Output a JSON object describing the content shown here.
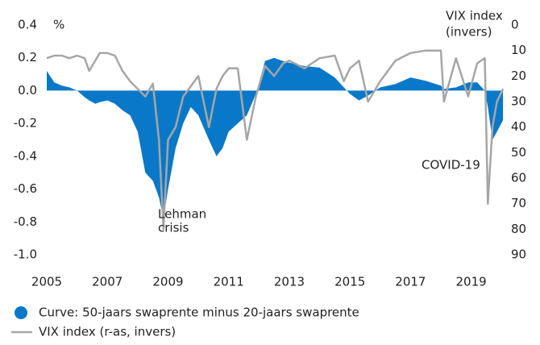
{
  "chart_data": {
    "type": "area-line",
    "ylabel": "%",
    "y2label": [
      "VIX index",
      "(invers)"
    ],
    "annotations": [
      [
        "Lehman",
        "crisis"
      ],
      [
        "COVID-19"
      ]
    ],
    "x": [
      2005,
      2005.25,
      2005.5,
      2005.75,
      2006,
      2006.25,
      2006.4,
      2006.6,
      2006.75,
      2007,
      2007.25,
      2007.5,
      2007.75,
      2008,
      2008.25,
      2008.5,
      2008.7,
      2008.85,
      2009,
      2009.25,
      2009.5,
      2009.75,
      2010,
      2010.35,
      2010.6,
      2010.8,
      2011,
      2011.3,
      2011.6,
      2011.9,
      2012.2,
      2012.5,
      2012.8,
      2013,
      2013.5,
      2014,
      2014.5,
      2014.8,
      2015,
      2015.3,
      2015.6,
      2016,
      2016.5,
      2017,
      2017.5,
      2018,
      2018.1,
      2018.5,
      2018.9,
      2019.2,
      2019.45,
      2019.55,
      2019.7,
      2019.85,
      2020.05
    ],
    "series": [
      {
        "name": "Curve: 50-jaars swaprente minus 20-jaars swaprente",
        "color": "#0a78c8",
        "kind": "area",
        "values": [
          0.12,
          0.05,
          0.03,
          0.02,
          0.0,
          -0.04,
          -0.06,
          -0.08,
          -0.07,
          -0.06,
          -0.08,
          -0.12,
          -0.15,
          -0.25,
          -0.5,
          -0.55,
          -0.65,
          -0.78,
          -0.6,
          -0.35,
          -0.2,
          -0.1,
          -0.15,
          -0.3,
          -0.4,
          -0.35,
          -0.25,
          -0.2,
          -0.15,
          -0.02,
          0.18,
          0.2,
          0.18,
          0.17,
          0.15,
          0.14,
          0.08,
          0.02,
          -0.02,
          -0.06,
          -0.03,
          0.02,
          0.04,
          0.08,
          0.06,
          0.03,
          0.01,
          0.02,
          0.05,
          0.05,
          0.0,
          -0.1,
          -0.3,
          -0.25,
          -0.18
        ]
      },
      {
        "name": "VIX index (r-as, invers)",
        "color": "#a6a6a6",
        "kind": "line",
        "axis": "y2",
        "values": [
          13,
          12,
          12,
          13,
          12,
          13,
          18,
          14,
          11,
          11,
          12,
          18,
          22,
          25,
          28,
          23,
          45,
          80,
          45,
          40,
          28,
          24,
          20,
          40,
          25,
          20,
          17,
          17,
          45,
          28,
          16,
          20,
          15,
          14,
          17,
          13,
          12,
          22,
          17,
          14,
          30,
          22,
          14,
          11,
          10,
          10,
          30,
          13,
          28,
          15,
          13,
          70,
          40,
          30,
          25
        ]
      }
    ],
    "xlim": [
      2005,
      2020.1
    ],
    "xticks": [
      2005,
      2007,
      2009,
      2011,
      2013,
      2015,
      2017,
      2019
    ],
    "ylim": [
      -1.0,
      0.4
    ],
    "yticks": [
      0.4,
      0.2,
      {
        "value": 0,
        "label": "0.0"
      },
      -0.2,
      -0.4,
      -0.6,
      -0.8,
      {
        "value": -1,
        "label": "-1.0"
      }
    ],
    "y2lim": [
      90,
      0
    ],
    "y2ticks": [
      0,
      10,
      20,
      30,
      40,
      50,
      60,
      70,
      80,
      90
    ],
    "legend": "bottom-left"
  }
}
